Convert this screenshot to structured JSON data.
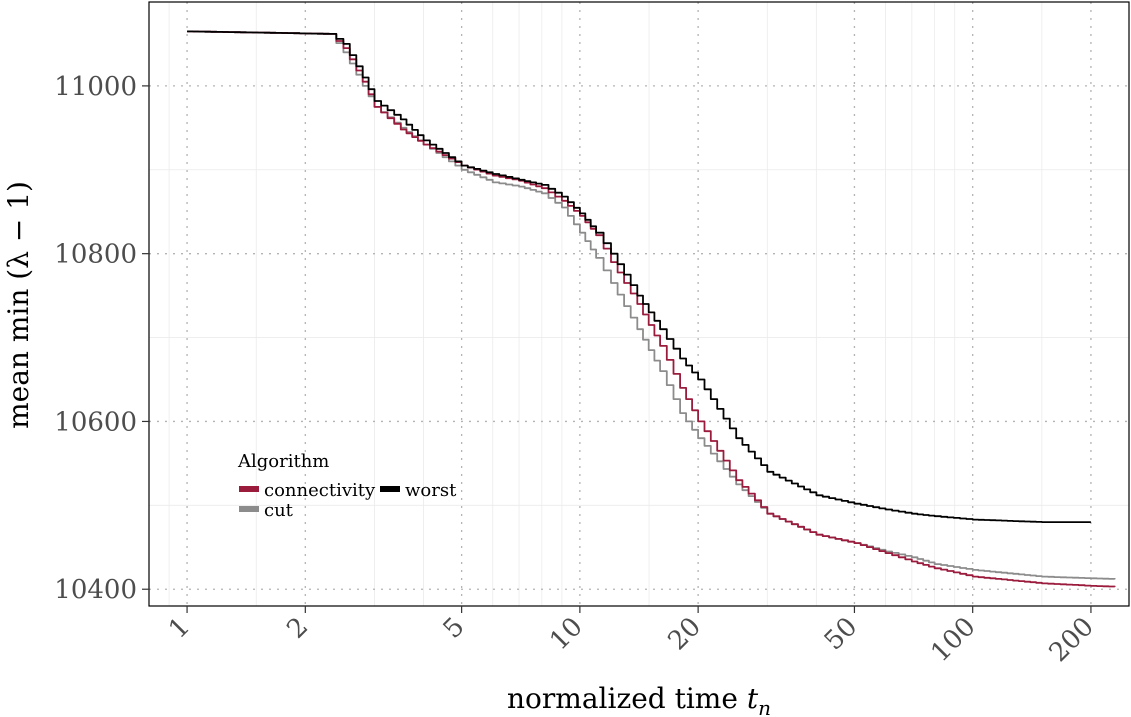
{
  "chart_data": {
    "type": "line",
    "xlabel": "normalized time t_n",
    "ylabel": "mean min (λ − 1)",
    "x_scale": "log",
    "xlim": [
      0.8,
      250
    ],
    "ylim": [
      10380,
      11100
    ],
    "x_ticks": [
      1,
      2,
      5,
      10,
      20,
      50,
      100,
      200
    ],
    "x_tick_labels": [
      "1",
      "2",
      "5",
      "10",
      "20",
      "50",
      "100",
      "200"
    ],
    "y_ticks": [
      10400,
      10600,
      10800,
      11000
    ],
    "y_tick_labels": [
      "10400",
      "10600",
      "10800",
      "11000"
    ],
    "grid": true,
    "legend": {
      "title": "Algorithm",
      "placement": "bottom-left",
      "entries": [
        "connectivity",
        "worst",
        "cut"
      ]
    },
    "colors": {
      "connectivity": "#9b1b3c",
      "cut": "#8c8c8c",
      "worst": "#000000"
    },
    "series": [
      {
        "name": "cut",
        "x": [
          1,
          2.3,
          2.5,
          2.8,
          3,
          3.5,
          4,
          5,
          6,
          7,
          8,
          9,
          10,
          11,
          12,
          14,
          16,
          18,
          20,
          25,
          30,
          40,
          50,
          60,
          70,
          80,
          100,
          150,
          200,
          230
        ],
        "y": [
          11065,
          11062,
          11040,
          11000,
          10975,
          10950,
          10930,
          10900,
          10885,
          10880,
          10872,
          10855,
          10825,
          10795,
          10765,
          10710,
          10660,
          10610,
          10580,
          10525,
          10490,
          10465,
          10455,
          10445,
          10438,
          10430,
          10423,
          10415,
          10413,
          10412
        ]
      },
      {
        "name": "connectivity",
        "x": [
          1,
          2.3,
          2.5,
          2.8,
          3,
          3.5,
          4,
          5,
          6,
          7,
          8,
          9,
          10,
          11,
          12,
          14,
          16,
          18,
          20,
          25,
          30,
          40,
          50,
          60,
          70,
          80,
          100,
          150,
          200,
          230
        ],
        "y": [
          11065,
          11062,
          11045,
          11005,
          10975,
          10948,
          10930,
          10905,
          10893,
          10887,
          10878,
          10863,
          10845,
          10822,
          10790,
          10740,
          10690,
          10640,
          10600,
          10530,
          10490,
          10465,
          10455,
          10443,
          10433,
          10425,
          10415,
          10407,
          10404,
          10403
        ]
      },
      {
        "name": "worst",
        "x": [
          1,
          2.3,
          2.5,
          2.8,
          3,
          3.5,
          4,
          5,
          6,
          7,
          8,
          9,
          10,
          11,
          12,
          14,
          16,
          18,
          20,
          25,
          30,
          40,
          50,
          60,
          70,
          80,
          100,
          150,
          200
        ],
        "y": [
          11065,
          11062,
          11050,
          11010,
          10982,
          10960,
          10935,
          10905,
          10895,
          10888,
          10882,
          10868,
          10848,
          10825,
          10800,
          10750,
          10710,
          10675,
          10650,
          10580,
          10540,
          10512,
          10502,
          10495,
          10490,
          10487,
          10483,
          10480,
          10480
        ]
      }
    ]
  }
}
